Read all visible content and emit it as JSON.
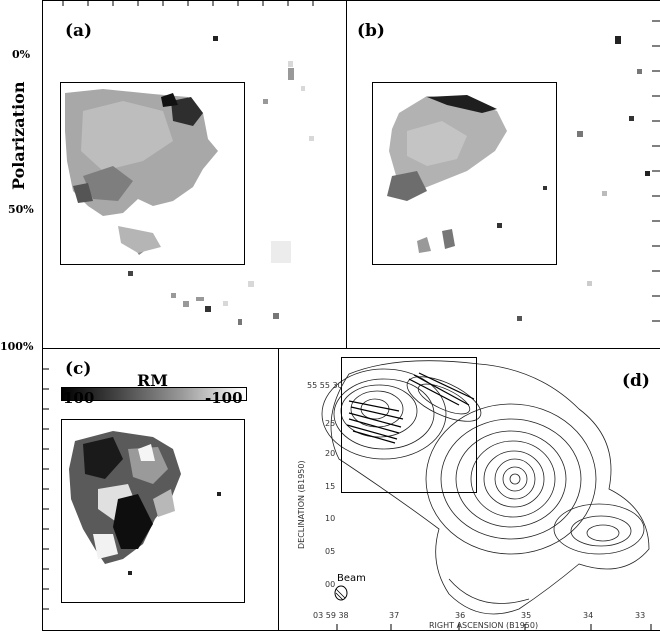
{
  "panels": {
    "a": {
      "label": "(a)"
    },
    "b": {
      "label": "(b)"
    },
    "c": {
      "label": "(c)"
    },
    "d": {
      "label": "(d)"
    }
  },
  "colorbar_polarization": {
    "title": "Polarization",
    "ticks": [
      "0%",
      "50%",
      "100%"
    ]
  },
  "colorbar_rm": {
    "title": "RM",
    "left_value": "100",
    "right_value": "-100"
  },
  "panel_d_axes": {
    "ylabel": "DECLINATION (B1950)",
    "xlabel": "RIGHT ASCENSION (B1950)",
    "y_ticks": [
      "55 55 30",
      "25",
      "20",
      "15",
      "10",
      "05",
      "00"
    ],
    "x_ticks": [
      "03 59 38",
      "37",
      "36",
      "35",
      "34",
      "33"
    ],
    "beam_label": "Beam"
  }
}
